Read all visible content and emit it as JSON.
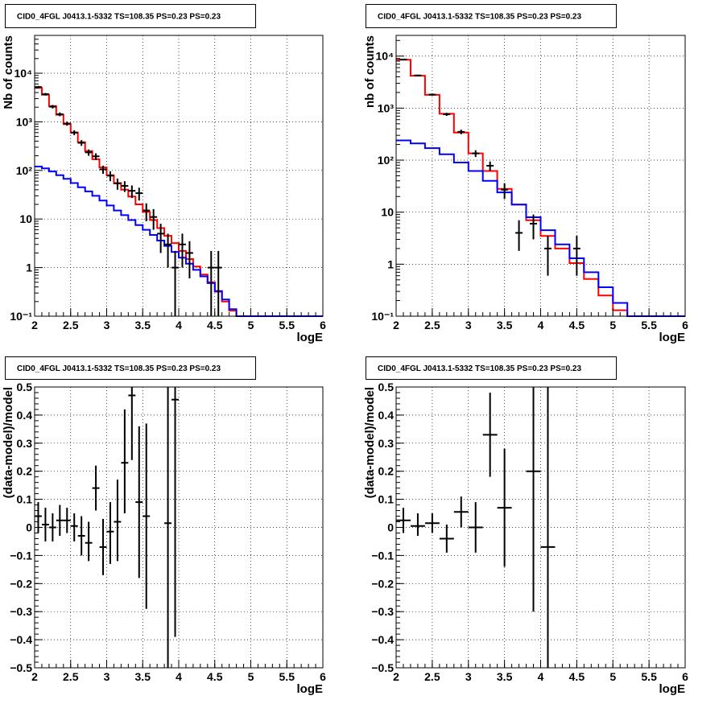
{
  "page": {
    "background": "#ffffff"
  },
  "colors": {
    "total": "#ff0000",
    "component": "#0000ff",
    "data": "#000000"
  },
  "chart_data": [
    {
      "panel": "top-left",
      "type": "line",
      "title": "CID0_4FGL J0413.1-5332 TS=108.35 PS=0.23 PS=0.23",
      "xlabel": "logE",
      "ylabel": "Nb of counts",
      "xlim": [
        2,
        6
      ],
      "ylim": [
        0.1,
        60000
      ],
      "ylog": true,
      "grid": true,
      "xticks": [
        2,
        2.5,
        3,
        3.5,
        4,
        4.5,
        5,
        5.5,
        6
      ],
      "xtick_labels": [
        "2",
        "2.5",
        "3",
        "3.5",
        "4",
        "4.5",
        "5",
        "5.5",
        "6"
      ],
      "yticks": [
        0.1,
        1,
        10,
        100,
        1000,
        10000
      ],
      "ytick_labels": [
        "10⁻¹",
        "1",
        "10",
        "10²",
        "10³",
        "10⁴"
      ],
      "series": [
        {
          "role": "total",
          "style": "step",
          "edges": [
            2,
            2.1,
            2.2,
            2.3,
            2.4,
            2.5,
            2.6,
            2.7,
            2.8,
            2.9,
            3,
            3.1,
            3.2,
            3.3,
            3.4,
            3.5,
            3.6,
            3.7,
            3.8,
            3.9,
            4,
            4.1,
            4.2,
            4.3,
            4.4,
            4.5,
            4.6,
            4.7,
            4.8,
            4.9,
            5,
            5.1,
            5.2,
            5.3,
            5.4,
            5.5,
            5.6,
            5.7,
            5.8,
            5.9,
            6
          ],
          "values": [
            5000,
            3600,
            2100,
            1400,
            900,
            600,
            380,
            250,
            170,
            115,
            80,
            55,
            40,
            29,
            20,
            14,
            9.5,
            6.5,
            4.5,
            3.2,
            2.2,
            1.5,
            1.05,
            0.72,
            0.5,
            0.32,
            0.2,
            0.13,
            0.1,
            0.1,
            0.1,
            0.1,
            0.1,
            0.1,
            0.1,
            0.1,
            0.1,
            0.1,
            0.1,
            0.1
          ]
        },
        {
          "role": "component",
          "style": "step",
          "edges": [
            2,
            2.1,
            2.2,
            2.3,
            2.4,
            2.5,
            2.6,
            2.7,
            2.8,
            2.9,
            3,
            3.1,
            3.2,
            3.3,
            3.4,
            3.5,
            3.6,
            3.7,
            3.8,
            3.9,
            4,
            4.1,
            4.2,
            4.3,
            4.4,
            4.5,
            4.6,
            4.7,
            4.8,
            4.9,
            5,
            5.1,
            5.2,
            5.3,
            5.4,
            5.5,
            5.6,
            5.7,
            5.8,
            5.9,
            6
          ],
          "values": [
            120,
            110,
            95,
            80,
            67,
            55,
            45,
            37,
            30,
            24,
            19,
            15,
            12,
            9.5,
            7.5,
            6,
            4.7,
            3.6,
            2.8,
            2.1,
            1.6,
            1.2,
            0.9,
            0.66,
            0.48,
            0.33,
            0.22,
            0.14,
            0.1,
            0.1,
            0.1,
            0.1,
            0.1,
            0.1,
            0.1,
            0.1,
            0.1,
            0.1,
            0.1,
            0.1
          ]
        },
        {
          "role": "data",
          "style": "errorbar",
          "points": [
            {
              "x": 2.05,
              "y": 5200,
              "lo": 4930,
              "hi": 5470
            },
            {
              "x": 2.15,
              "y": 3700,
              "lo": 3480,
              "hi": 3920
            },
            {
              "x": 2.25,
              "y": 2050,
              "lo": 1880,
              "hi": 2220
            },
            {
              "x": 2.35,
              "y": 1430,
              "lo": 1300,
              "hi": 1560
            },
            {
              "x": 2.45,
              "y": 920,
              "lo": 830,
              "hi": 1010
            },
            {
              "x": 2.55,
              "y": 600,
              "lo": 530,
              "hi": 670
            },
            {
              "x": 2.65,
              "y": 370,
              "lo": 320,
              "hi": 420
            },
            {
              "x": 2.75,
              "y": 235,
              "lo": 200,
              "hi": 270
            },
            {
              "x": 2.85,
              "y": 195,
              "lo": 165,
              "hi": 225
            },
            {
              "x": 2.95,
              "y": 105,
              "lo": 85,
              "hi": 125
            },
            {
              "x": 3.05,
              "y": 78,
              "lo": 60,
              "hi": 96
            },
            {
              "x": 3.15,
              "y": 54,
              "lo": 40,
              "hi": 68
            },
            {
              "x": 3.25,
              "y": 48,
              "lo": 36,
              "hi": 60
            },
            {
              "x": 3.35,
              "y": 38,
              "lo": 27,
              "hi": 49
            },
            {
              "x": 3.45,
              "y": 34,
              "lo": 24,
              "hi": 44
            },
            {
              "x": 3.55,
              "y": 15,
              "lo": 9,
              "hi": 21
            },
            {
              "x": 3.65,
              "y": 11,
              "lo": 6,
              "hi": 16
            },
            {
              "x": 3.75,
              "y": 5,
              "lo": 2,
              "hi": 8
            },
            {
              "x": 3.85,
              "y": 3,
              "lo": 1,
              "hi": 5
            },
            {
              "x": 3.95,
              "y": 1,
              "lo": 0.1,
              "hi": 2.2
            },
            {
              "x": 4.05,
              "y": 3,
              "lo": 1,
              "hi": 5
            },
            {
              "x": 4.15,
              "y": 2,
              "lo": 0.6,
              "hi": 3.5
            },
            {
              "x": 4.45,
              "y": 1,
              "lo": 0.1,
              "hi": 2.2
            },
            {
              "x": 4.55,
              "y": 1,
              "lo": 0.1,
              "hi": 2.2
            }
          ]
        }
      ]
    },
    {
      "panel": "top-right",
      "type": "line",
      "title": "CID0_4FGL J0413.1-5332 TS=108.35 PS=0.23 PS=0.23",
      "xlabel": "logE",
      "ylabel": "nb of counts",
      "xlim": [
        2,
        6
      ],
      "ylim": [
        0.1,
        25000
      ],
      "ylog": true,
      "grid": true,
      "xticks": [
        2,
        2.5,
        3,
        3.5,
        4,
        4.5,
        5,
        5.5,
        6
      ],
      "xtick_labels": [
        "2",
        "2.5",
        "3",
        "3.5",
        "4",
        "4.5",
        "5",
        "5.5",
        "6"
      ],
      "yticks": [
        0.1,
        1,
        10,
        100,
        1000,
        10000
      ],
      "ytick_labels": [
        "10⁻¹",
        "1",
        "10",
        "10²",
        "10³",
        "10⁴"
      ],
      "series": [
        {
          "role": "total",
          "style": "step",
          "edges": [
            2,
            2.2,
            2.4,
            2.6,
            2.8,
            3,
            3.2,
            3.4,
            3.6,
            3.8,
            4,
            4.2,
            4.4,
            4.6,
            4.8,
            5,
            5.2,
            5.4,
            5.6,
            5.8,
            6
          ],
          "values": [
            8500,
            4200,
            1800,
            780,
            340,
            135,
            62,
            28,
            14,
            7,
            3.5,
            2,
            1.05,
            0.52,
            0.25,
            0.13,
            0.1,
            0.1,
            0.1,
            0.1
          ]
        },
        {
          "role": "component",
          "style": "step",
          "edges": [
            2,
            2.2,
            2.4,
            2.6,
            2.8,
            3,
            3.2,
            3.4,
            3.6,
            3.8,
            4,
            4.2,
            4.4,
            4.6,
            4.8,
            5,
            5.2,
            5.4,
            5.6,
            5.8,
            6
          ],
          "values": [
            240,
            210,
            170,
            130,
            90,
            62,
            40,
            24,
            14,
            8,
            4.5,
            2.4,
            1.3,
            0.7,
            0.36,
            0.18,
            0.1,
            0.1,
            0.1,
            0.1
          ]
        },
        {
          "role": "data",
          "style": "errorbar",
          "points": [
            {
              "x": 2.1,
              "y": 8600,
              "lo": 8410,
              "hi": 8790
            },
            {
              "x": 2.3,
              "y": 4250,
              "lo": 4120,
              "hi": 4380
            },
            {
              "x": 2.5,
              "y": 1820,
              "lo": 1740,
              "hi": 1900
            },
            {
              "x": 2.7,
              "y": 760,
              "lo": 710,
              "hi": 810
            },
            {
              "x": 2.9,
              "y": 350,
              "lo": 315,
              "hi": 385
            },
            {
              "x": 3.1,
              "y": 135,
              "lo": 115,
              "hi": 155
            },
            {
              "x": 3.3,
              "y": 78,
              "lo": 62,
              "hi": 94
            },
            {
              "x": 3.5,
              "y": 27,
              "lo": 18,
              "hi": 36
            },
            {
              "x": 3.7,
              "y": 4,
              "lo": 1.8,
              "hi": 7
            },
            {
              "x": 3.9,
              "y": 6,
              "lo": 3,
              "hi": 9
            },
            {
              "x": 4.1,
              "y": 2,
              "lo": 0.6,
              "hi": 3.5
            },
            {
              "x": 4.5,
              "y": 2,
              "lo": 0.6,
              "hi": 3.5
            }
          ]
        }
      ]
    },
    {
      "panel": "bottom-left",
      "type": "scatter",
      "title": "CID0_4FGL J0413.1-5332 TS=108.35 PS=0.23 PS=0.23",
      "xlabel": "logE",
      "ylabel": "(data-model)/model",
      "xlim": [
        2,
        6
      ],
      "ylim": [
        -0.5,
        0.5
      ],
      "ylog": false,
      "grid": true,
      "xticks": [
        2,
        2.5,
        3,
        3.5,
        4,
        4.5,
        5,
        5.5,
        6
      ],
      "xtick_labels": [
        "2",
        "2.5",
        "3",
        "3.5",
        "4",
        "4.5",
        "5",
        "5.5",
        "6"
      ],
      "yticks": [
        -0.5,
        -0.4,
        -0.3,
        -0.2,
        -0.1,
        0,
        0.1,
        0.2,
        0.3,
        0.4,
        0.5
      ],
      "ytick_labels": [
        "−0.5",
        "−0.4",
        "−0.3",
        "−0.2",
        "−0.1",
        "0",
        "0.1",
        "0.2",
        "0.3",
        "0.4",
        "0.5"
      ],
      "series": [
        {
          "role": "data",
          "style": "errorbar",
          "xerr": 0.05,
          "points": [
            {
              "x": 2.05,
              "y": 0.04,
              "lo": -0.02,
              "hi": 0.09
            },
            {
              "x": 2.15,
              "y": 0.01,
              "lo": -0.05,
              "hi": 0.07
            },
            {
              "x": 2.25,
              "y": 0.0,
              "lo": -0.05,
              "hi": 0.05
            },
            {
              "x": 2.35,
              "y": 0.025,
              "lo": -0.03,
              "hi": 0.08
            },
            {
              "x": 2.45,
              "y": 0.025,
              "lo": -0.02,
              "hi": 0.07
            },
            {
              "x": 2.55,
              "y": 0.005,
              "lo": -0.05,
              "hi": 0.05
            },
            {
              "x": 2.65,
              "y": -0.03,
              "lo": -0.1,
              "hi": 0.04
            },
            {
              "x": 2.75,
              "y": -0.055,
              "lo": -0.12,
              "hi": 0.02
            },
            {
              "x": 2.85,
              "y": 0.14,
              "lo": 0.06,
              "hi": 0.22
            },
            {
              "x": 2.95,
              "y": -0.07,
              "lo": -0.17,
              "hi": 0.03
            },
            {
              "x": 3.05,
              "y": -0.015,
              "lo": -0.13,
              "hi": 0.09
            },
            {
              "x": 3.15,
              "y": 0.02,
              "lo": -0.12,
              "hi": 0.17
            },
            {
              "x": 3.25,
              "y": 0.23,
              "lo": 0.05,
              "hi": 0.42
            },
            {
              "x": 3.35,
              "y": 0.47,
              "lo": 0.24,
              "hi": 0.52
            },
            {
              "x": 3.45,
              "y": 0.09,
              "lo": -0.18,
              "hi": 0.36
            },
            {
              "x": 3.55,
              "y": 0.04,
              "lo": -0.29,
              "hi": 0.37
            },
            {
              "x": 3.85,
              "y": 0.015,
              "lo": -0.52,
              "hi": 0.52
            },
            {
              "x": 3.95,
              "y": 0.455,
              "lo": -0.39,
              "hi": 0.52
            }
          ]
        }
      ]
    },
    {
      "panel": "bottom-right",
      "type": "scatter",
      "title": "CID0_4FGL J0413.1-5332 TS=108.35 PS=0.23 PS=0.23",
      "xlabel": "logE",
      "ylabel": "(data-model)/model",
      "xlim": [
        2,
        6
      ],
      "ylim": [
        -0.5,
        0.5
      ],
      "ylog": false,
      "grid": true,
      "xticks": [
        2,
        2.5,
        3,
        3.5,
        4,
        4.5,
        5,
        5.5,
        6
      ],
      "xtick_labels": [
        "2",
        "2.5",
        "3",
        "3.5",
        "4",
        "4.5",
        "5",
        "5.5",
        "6"
      ],
      "yticks": [
        -0.5,
        -0.4,
        -0.3,
        -0.2,
        -0.1,
        0,
        0.1,
        0.2,
        0.3,
        0.4,
        0.5
      ],
      "ytick_labels": [
        "−0.5",
        "−0.4",
        "−0.3",
        "−0.2",
        "−0.1",
        "0",
        "0.1",
        "0.2",
        "0.3",
        "0.4",
        "0.5"
      ],
      "series": [
        {
          "role": "data",
          "style": "errorbar",
          "xerr": 0.1,
          "points": [
            {
              "x": 2.1,
              "y": 0.025,
              "lo": -0.02,
              "hi": 0.07
            },
            {
              "x": 2.3,
              "y": 0.005,
              "lo": -0.03,
              "hi": 0.05
            },
            {
              "x": 2.5,
              "y": 0.015,
              "lo": -0.02,
              "hi": 0.05
            },
            {
              "x": 2.7,
              "y": -0.04,
              "lo": -0.09,
              "hi": 0.01
            },
            {
              "x": 2.9,
              "y": 0.055,
              "lo": 0.0,
              "hi": 0.11
            },
            {
              "x": 3.1,
              "y": 0.0,
              "lo": -0.09,
              "hi": 0.09
            },
            {
              "x": 3.3,
              "y": 0.33,
              "lo": 0.18,
              "hi": 0.48
            },
            {
              "x": 3.5,
              "y": 0.07,
              "lo": -0.14,
              "hi": 0.28
            },
            {
              "x": 3.9,
              "y": 0.2,
              "lo": -0.3,
              "hi": 0.52
            },
            {
              "x": 4.1,
              "y": -0.07,
              "lo": -0.52,
              "hi": 0.52
            }
          ]
        }
      ]
    }
  ]
}
